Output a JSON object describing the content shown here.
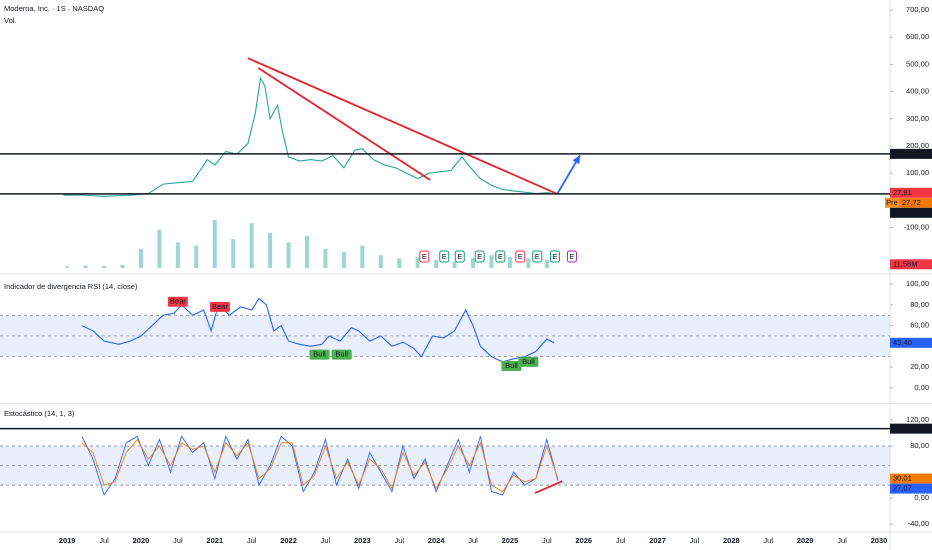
{
  "chart_data": [
    {
      "type": "line",
      "title": "Moderna, Inc. · 1S · NASDAQ",
      "color": "#26a69a",
      "xlim": [
        2018.09,
        2030.15
      ],
      "xticks": [
        2019,
        {
          "value": 2019.5,
          "label": "Jul"
        },
        2020,
        {
          "value": 2020.5,
          "label": "Jul"
        },
        2021,
        {
          "value": 2021.5,
          "label": "Jul"
        },
        2022,
        {
          "value": 2022.5,
          "label": "Jul"
        },
        2023,
        {
          "value": 2023.5,
          "label": "Jul"
        },
        2024,
        {
          "value": 2024.5,
          "label": "Jul"
        },
        2025,
        {
          "value": 2025.5,
          "label": "Jul"
        },
        2026,
        {
          "value": 2026.5,
          "label": "Jul"
        },
        2027,
        {
          "value": 2027.5,
          "label": "Jul"
        },
        2028,
        {
          "value": 2028.5,
          "label": "Jul"
        },
        2029,
        {
          "value": 2029.5,
          "label": "Jul"
        },
        2030
      ],
      "ylim": [
        -256,
        737
      ],
      "yticks": [
        {
          "value": 700,
          "label": "700,00"
        },
        {
          "value": 600,
          "label": "600,00"
        },
        {
          "value": 500,
          "label": "500,00"
        },
        {
          "value": 400,
          "label": "400,00"
        },
        {
          "value": 300,
          "label": "300,00"
        },
        {
          "value": 200,
          "label": "200,00"
        },
        {
          "value": 100,
          "label": "100,00"
        },
        {
          "value": -100,
          "label": "-100,00"
        }
      ],
      "x": [
        2018.95,
        2019.2,
        2019.5,
        2019.9,
        2020.1,
        2020.3,
        2020.5,
        2020.7,
        2020.9,
        2021.0,
        2021.15,
        2021.3,
        2021.45,
        2021.55,
        2021.62,
        2021.68,
        2021.75,
        2021.85,
        2021.92,
        2022.0,
        2022.15,
        2022.3,
        2022.45,
        2022.6,
        2022.75,
        2022.9,
        2023.0,
        2023.15,
        2023.3,
        2023.45,
        2023.6,
        2023.75,
        2023.9,
        2024.05,
        2024.2,
        2024.35,
        2024.45,
        2024.6,
        2024.75,
        2024.9,
        2025.05,
        2025.2,
        2025.35,
        2025.5,
        2025.55
      ],
      "values": [
        19,
        20,
        15,
        20,
        25,
        60,
        65,
        70,
        150,
        130,
        180,
        170,
        210,
        320,
        450,
        420,
        300,
        350,
        250,
        160,
        145,
        150,
        145,
        165,
        120,
        185,
        190,
        150,
        130,
        120,
        100,
        80,
        100,
        105,
        110,
        160,
        125,
        80,
        55,
        40,
        35,
        30,
        25,
        28,
        27.91
      ],
      "volume": {
        "label": "Vol.",
        "color": "#26a69a",
        "ylim": [
          0,
          250
        ],
        "x": [
          2019,
          2019.25,
          2019.5,
          2019.75,
          2020,
          2020.25,
          2020.5,
          2020.75,
          2021,
          2021.25,
          2021.5,
          2021.75,
          2022,
          2022.25,
          2022.5,
          2022.75,
          2023,
          2023.25,
          2023.5,
          2023.75,
          2024,
          2024.25,
          2024.5,
          2024.75,
          2025,
          2025.25,
          2025.5
        ],
        "values": [
          5,
          8,
          6,
          10,
          60,
          120,
          80,
          70,
          150,
          90,
          140,
          110,
          80,
          100,
          60,
          50,
          70,
          40,
          30,
          35,
          25,
          20,
          30,
          40,
          35,
          30,
          25
        ],
        "tag": {
          "value": 11.58,
          "label": "11,58M",
          "color": "#f23645"
        }
      },
      "earnings": {
        "label": "E",
        "x": [
          2023.84,
          2024.11,
          2024.32,
          2024.59,
          2024.87,
          2025.14,
          2025.37,
          2025.61,
          2025.84
        ],
        "colors": [
          "#f23645",
          "#089981",
          "#089981",
          "#089981",
          "#089981",
          "#f23645",
          "#089981",
          "#089981",
          "#9c27b0"
        ]
      },
      "tags": [
        {
          "value": 171.09,
          "label": "171,09",
          "color": "#131722",
          "line": true
        },
        {
          "value": 27.91,
          "label": "27,91",
          "color": "#f23645"
        },
        {
          "value": 27.72,
          "label": "27,72",
          "prefix": "Pre",
          "color": "#f57c00"
        },
        {
          "value": 23.95,
          "label": "23,95",
          "color": "#131722",
          "line": true
        }
      ],
      "trendlines": [
        {
          "color": "#e8202a",
          "x": [
            2021.45,
            2025.64
          ],
          "y": [
            523,
            23.95
          ]
        },
        {
          "color": "#e8202a",
          "x": [
            2021.59,
            2023.92
          ],
          "y": [
            487,
            75
          ]
        },
        {
          "color": "#2962ff",
          "x": [
            2025.64,
            2025.95
          ],
          "y": [
            23.95,
            166
          ],
          "arrow": true
        }
      ]
    },
    {
      "type": "line",
      "title": "Indicador de divergencia RSI (14, close)",
      "color": "#2962ff",
      "ylim": [
        -13.7,
        105.9
      ],
      "yticks": [
        {
          "value": 100,
          "label": "100,00"
        },
        {
          "value": 80,
          "label": "80,00"
        },
        {
          "value": 60,
          "label": "60,00"
        },
        {
          "value": 20,
          "label": "20,00"
        },
        {
          "value": 0,
          "label": "0,00"
        }
      ],
      "levels": [
        30,
        50,
        70
      ],
      "x": [
        2019.2,
        2019.35,
        2019.5,
        2019.7,
        2019.85,
        2020.0,
        2020.15,
        2020.3,
        2020.45,
        2020.55,
        2020.7,
        2020.85,
        2020.95,
        2021.05,
        2021.2,
        2021.35,
        2021.5,
        2021.6,
        2021.7,
        2021.8,
        2021.9,
        2022.0,
        2022.15,
        2022.3,
        2022.45,
        2022.55,
        2022.7,
        2022.85,
        2022.95,
        2023.1,
        2023.25,
        2023.4,
        2023.55,
        2023.7,
        2023.8,
        2023.95,
        2024.1,
        2024.25,
        2024.4,
        2024.5,
        2024.6,
        2024.75,
        2024.9,
        2025.05,
        2025.2,
        2025.35,
        2025.5,
        2025.6
      ],
      "values": [
        60,
        55,
        45,
        42,
        45,
        50,
        60,
        70,
        72,
        80,
        70,
        75,
        55,
        80,
        70,
        78,
        75,
        86,
        80,
        55,
        60,
        45,
        42,
        40,
        42,
        50,
        45,
        58,
        55,
        45,
        50,
        40,
        44,
        38,
        30,
        50,
        48,
        55,
        75,
        60,
        40,
        30,
        25,
        28,
        30,
        35,
        47,
        43.4
      ],
      "signals": [
        {
          "label": "Bear",
          "x": 2020.5,
          "y": 83,
          "color": "#f23645"
        },
        {
          "label": "Bear",
          "x": 2021.07,
          "y": 78,
          "color": "#f23645"
        },
        {
          "label": "Bull",
          "x": 2022.42,
          "y": 32,
          "color": "#4caf50"
        },
        {
          "label": "Bull",
          "x": 2022.72,
          "y": 32,
          "color": "#4caf50"
        },
        {
          "label": "Bull",
          "x": 2025.02,
          "y": 21,
          "color": "#4caf50"
        },
        {
          "label": "Bull",
          "x": 2025.25,
          "y": 25,
          "color": "#4caf50"
        }
      ],
      "tags": [
        {
          "value": 43.4,
          "label": "43,40",
          "color": "#2962ff"
        }
      ]
    },
    {
      "type": "line",
      "title": "Estocástico (14, 1, 3)",
      "ylim": [
        -52,
        143
      ],
      "yticks": [
        {
          "value": 120,
          "label": "120,00"
        },
        {
          "value": 80,
          "label": "80,00"
        },
        {
          "value": 0,
          "label": "0,00"
        },
        {
          "value": -40,
          "label": "-40,00"
        }
      ],
      "levels": [
        20,
        50,
        80
      ],
      "x": [
        2019.2,
        2019.35,
        2019.5,
        2019.65,
        2019.8,
        2019.95,
        2020.1,
        2020.25,
        2020.4,
        2020.55,
        2020.7,
        2020.85,
        2021.0,
        2021.15,
        2021.3,
        2021.45,
        2021.6,
        2021.75,
        2021.9,
        2022.05,
        2022.2,
        2022.35,
        2022.5,
        2022.65,
        2022.8,
        2022.95,
        2023.1,
        2023.25,
        2023.4,
        2023.55,
        2023.7,
        2023.85,
        2024.0,
        2024.15,
        2024.3,
        2024.45,
        2024.6,
        2024.75,
        2024.9,
        2025.05,
        2025.2,
        2025.35,
        2025.5,
        2025.65
      ],
      "series": [
        {
          "color": "#2962ff",
          "values": [
            95,
            60,
            5,
            30,
            85,
            95,
            50,
            90,
            40,
            95,
            70,
            85,
            30,
            95,
            60,
            90,
            20,
            50,
            95,
            80,
            10,
            40,
            90,
            20,
            60,
            15,
            70,
            40,
            10,
            80,
            30,
            60,
            10,
            50,
            90,
            40,
            95,
            10,
            5,
            40,
            20,
            30,
            90,
            27.07
          ]
        },
        {
          "color": "#f57c00",
          "values": [
            85,
            70,
            20,
            25,
            70,
            90,
            60,
            80,
            50,
            85,
            75,
            80,
            40,
            85,
            65,
            85,
            30,
            45,
            85,
            85,
            20,
            35,
            80,
            30,
            55,
            20,
            60,
            45,
            15,
            70,
            35,
            55,
            15,
            45,
            80,
            50,
            85,
            20,
            10,
            35,
            25,
            30,
            80,
            30.01
          ]
        }
      ],
      "tags": [
        {
          "value": 106.68,
          "label": "106,68",
          "color": "#131722",
          "line": true
        },
        {
          "value": 30.01,
          "label": "30,01",
          "color": "#f57c00"
        },
        {
          "value": 27.07,
          "label": "27,07",
          "color": "#2962ff"
        }
      ],
      "trendlines": [
        {
          "color": "#e8202a",
          "x": [
            2025.34,
            2025.71
          ],
          "y": [
            7.7,
            26
          ]
        }
      ]
    }
  ]
}
